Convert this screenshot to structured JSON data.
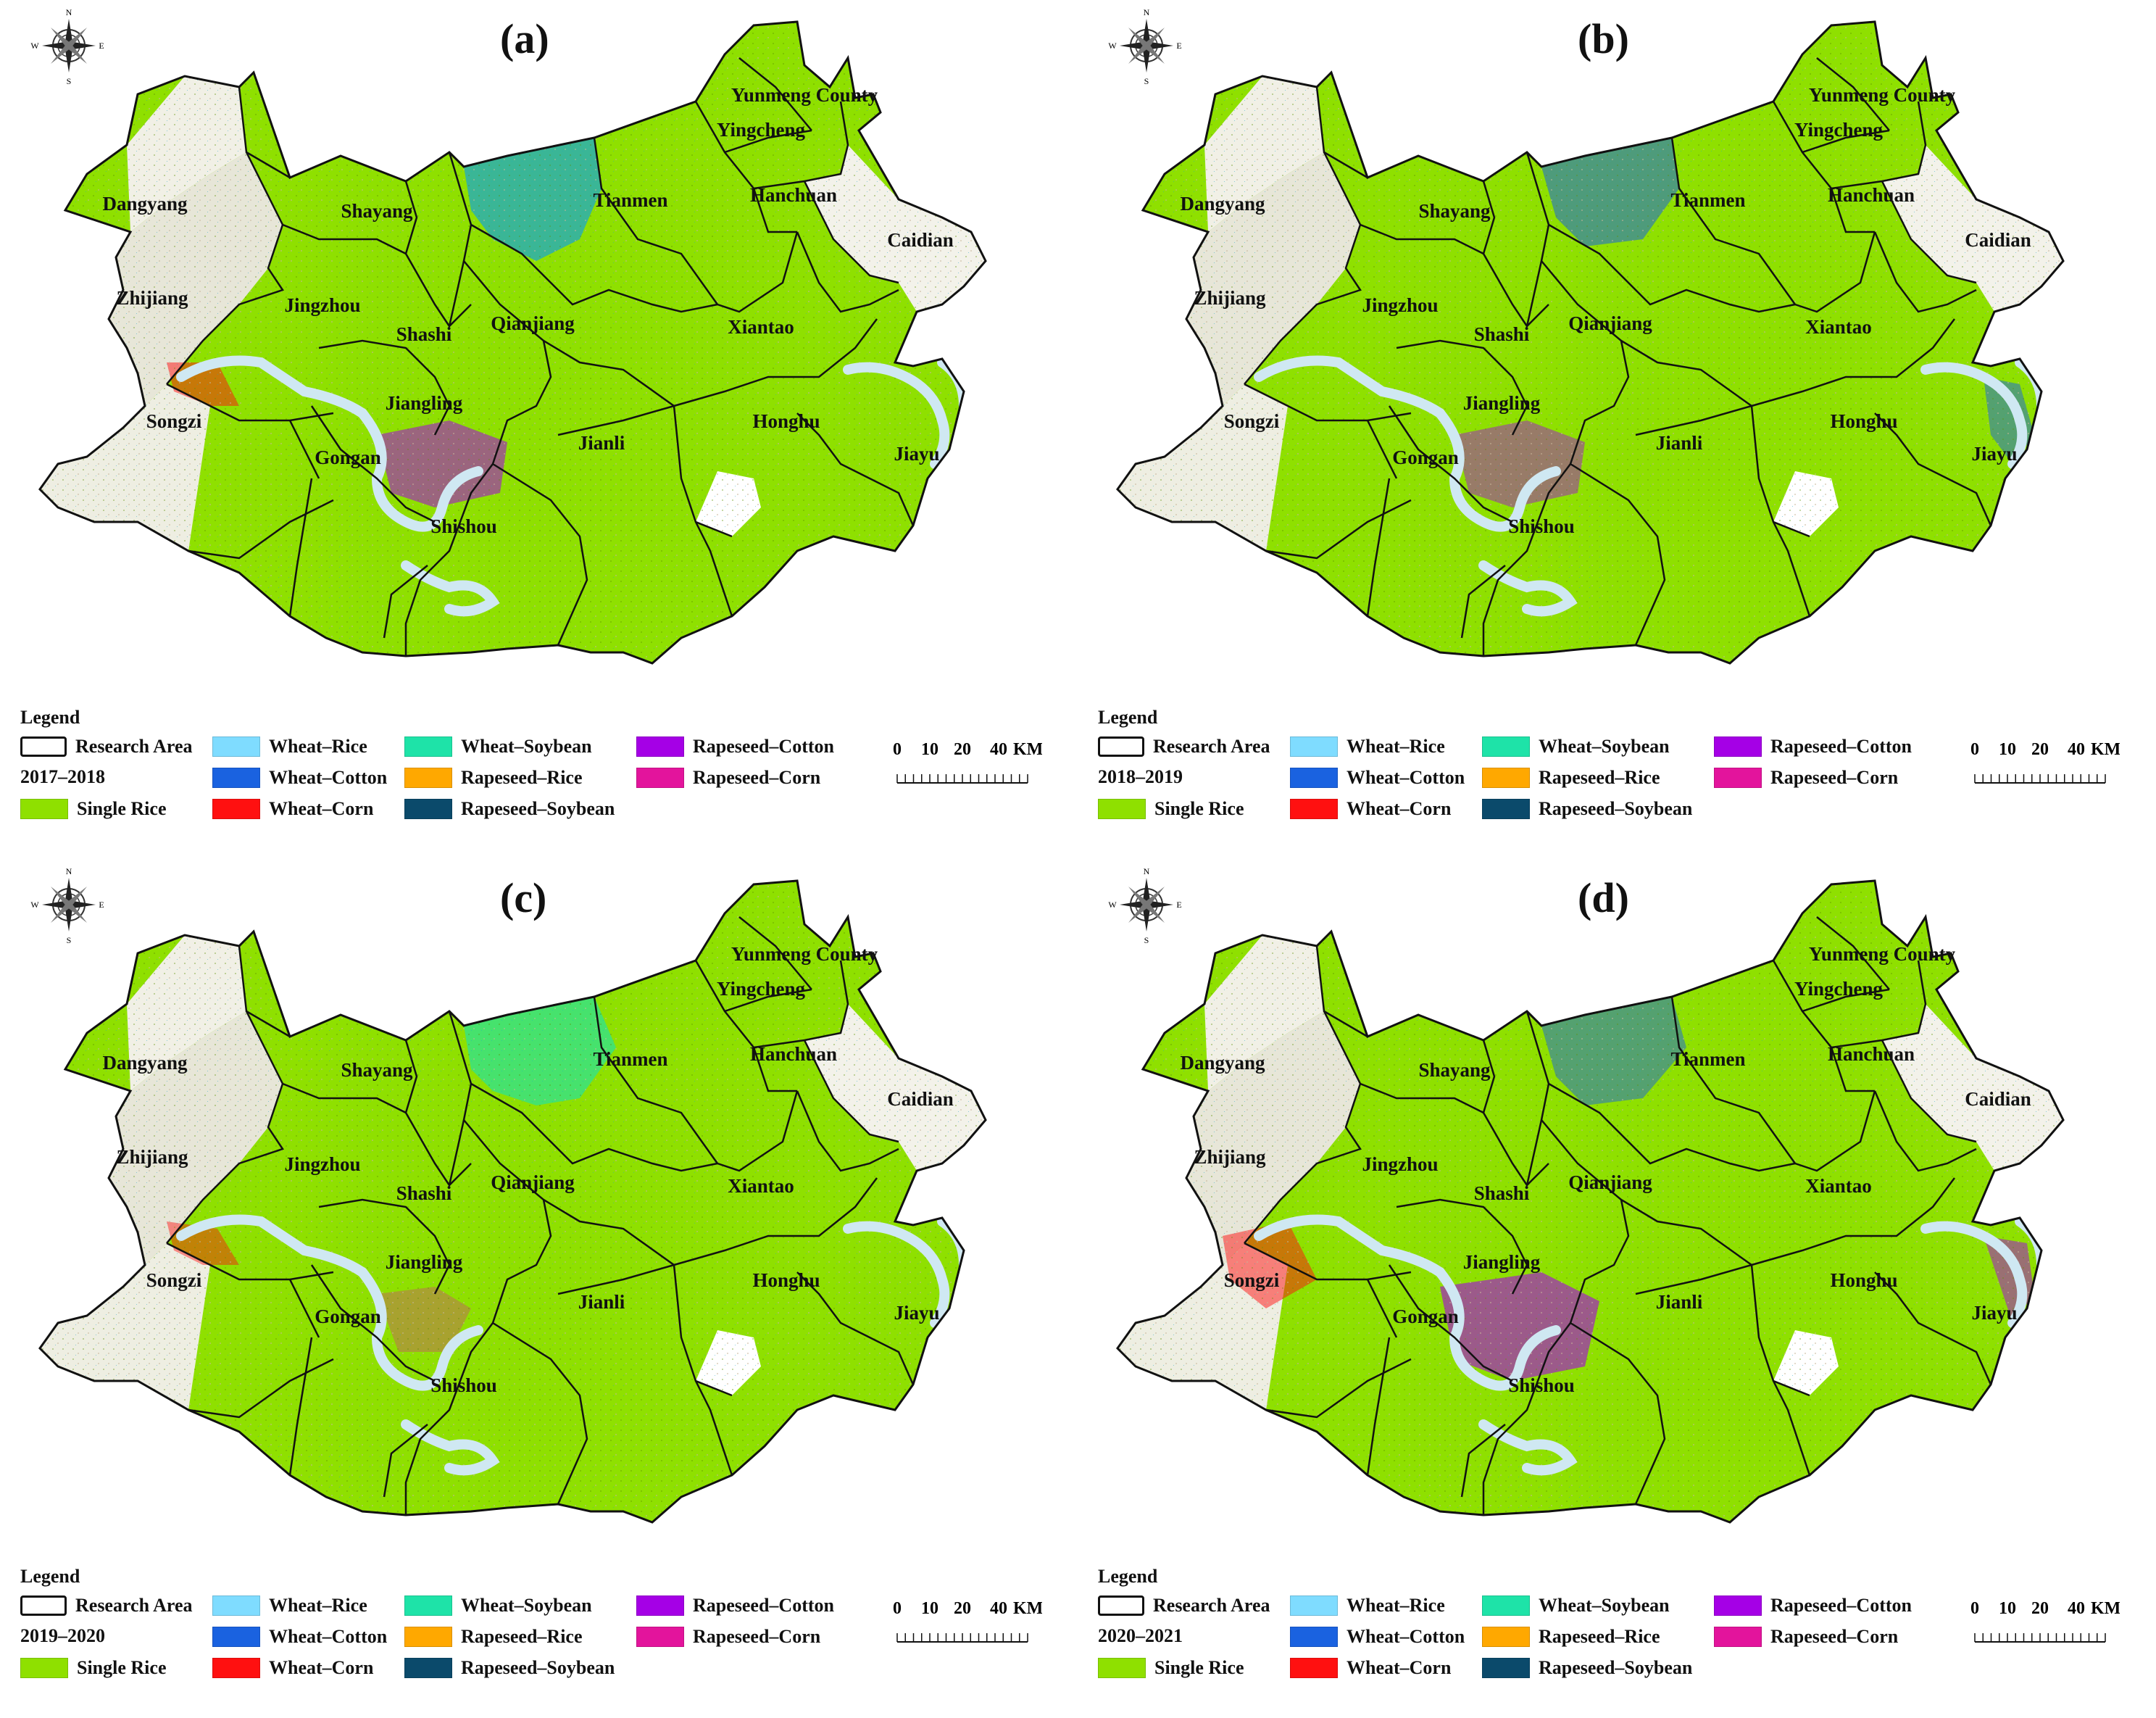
{
  "panels": [
    {
      "id": "a",
      "label": "(a)",
      "year": "2017–2018"
    },
    {
      "id": "b",
      "label": "(b)",
      "year": "2018–2019"
    },
    {
      "id": "c",
      "label": "(c)",
      "year": "2019–2020"
    },
    {
      "id": "d",
      "label": "(d)",
      "year": "2020–2021"
    }
  ],
  "compass": {
    "n": "N",
    "s": "S",
    "e": "E",
    "w": "W"
  },
  "counties": [
    "Yunmeng County",
    "Yingcheng",
    "Dangyang",
    "Shayang",
    "Tianmen",
    "Hanchuan",
    "Caidian",
    "Zhijiang",
    "Jingzhou",
    "Shashi",
    "Qianjiang",
    "Xiantao",
    "Jiangling",
    "Songzi",
    "Gongan",
    "Jianli",
    "Honghu",
    "Jiayu",
    "Shishou"
  ],
  "legend": {
    "title": "Legend",
    "research_area": "Research Area",
    "items": [
      {
        "label": "Single Rice",
        "color": "#8fe000"
      },
      {
        "label": "Wheat–Rice",
        "color": "#7fdcff"
      },
      {
        "label": "Wheat–Cotton",
        "color": "#1a62e0"
      },
      {
        "label": "Wheat–Corn",
        "color": "#ff1010"
      },
      {
        "label": "Wheat–Soybean",
        "color": "#1ee3a8"
      },
      {
        "label": "Rapeseed–Rice",
        "color": "#ffa800"
      },
      {
        "label": "Rapeseed–Soybean",
        "color": "#0b4a6b"
      },
      {
        "label": "Rapeseed–Cotton",
        "color": "#a500e6"
      },
      {
        "label": "Rapeseed–Corn",
        "color": "#e3149c"
      }
    ]
  },
  "scale": {
    "ticks": [
      "0",
      "10",
      "20",
      "40"
    ],
    "unit": "KM"
  }
}
